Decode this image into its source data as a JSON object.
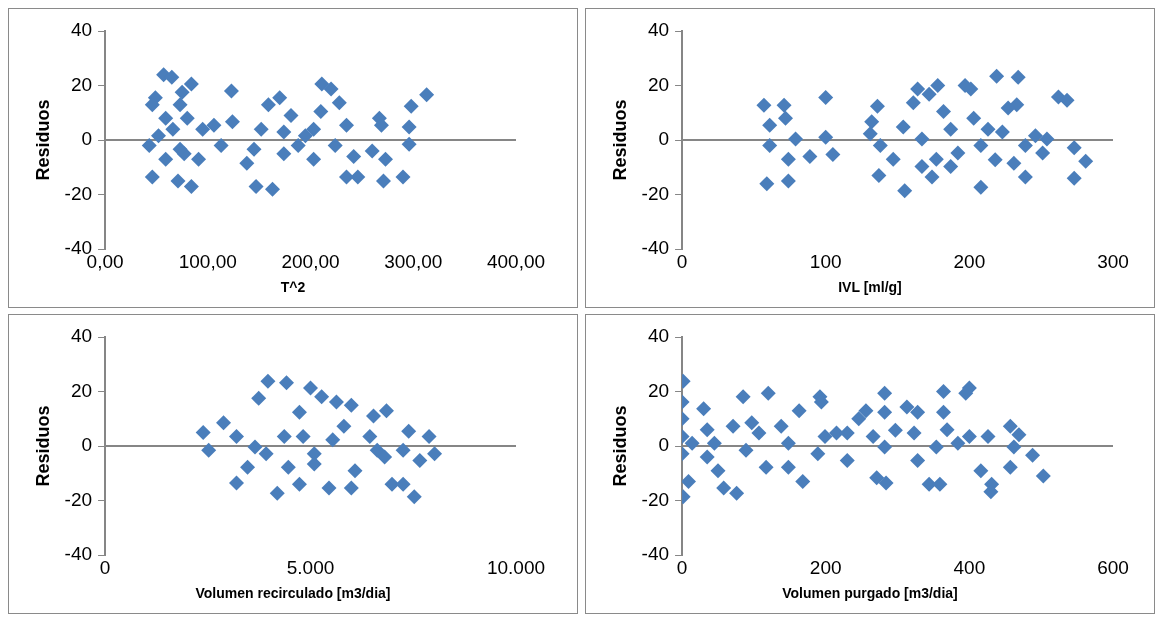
{
  "chart_data": [
    {
      "type": "scatter",
      "xlabel": "T^2",
      "ref_lines": [
        {
          "axis": "y",
          "value": 0
        }
      ],
      "ylabel": "Residuos",
      "color": "#4a7ebb",
      "marker": "diamond",
      "grid": false,
      "legend": false,
      "xlim": [
        0,
        400
      ],
      "xticks": [
        {
          "value": 0,
          "label": "0,00"
        },
        {
          "value": 100,
          "label": "100,00"
        },
        {
          "value": 200,
          "label": "200,00"
        },
        {
          "value": 300,
          "label": "300,00"
        },
        {
          "value": 400,
          "label": "400,00"
        }
      ],
      "ylim": [
        -40,
        40
      ],
      "yticks": [
        -40,
        -20,
        0,
        20,
        40
      ],
      "x": [
        57,
        65,
        49,
        46,
        84,
        75,
        123,
        124,
        43,
        46,
        84,
        71,
        59,
        77,
        95,
        113,
        106,
        66,
        52,
        80,
        73,
        138,
        147,
        163,
        145,
        152,
        159,
        170,
        181,
        174,
        188,
        174,
        203,
        211,
        220,
        228,
        210,
        235,
        224,
        235,
        246,
        242,
        260,
        273,
        271,
        267,
        269,
        290,
        296,
        296,
        298,
        313,
        203,
        195,
        73,
        59,
        91
      ],
      "values": [
        24,
        23,
        15.5,
        13,
        20.6,
        17.5,
        18,
        6.7,
        -2,
        -13.5,
        -17,
        -15,
        -7,
        -5,
        4,
        -2,
        5.4,
        4,
        1.6,
        8,
        13,
        -8.5,
        -17,
        -18,
        -3.4,
        4,
        13,
        15.5,
        9,
        3,
        -2,
        -5,
        4,
        20.6,
        18.7,
        13.7,
        10.5,
        5.4,
        -2,
        -13.5,
        -13.5,
        -6,
        -4,
        -7,
        -15,
        8,
        5.4,
        -13.5,
        -1.5,
        4.8,
        12.4,
        16.6,
        -7,
        1.6,
        -3.4,
        8,
        -7
      ]
    },
    {
      "type": "scatter",
      "xlabel": "IVL [ml/g]",
      "ylabel": "Residuos",
      "color": "#4a7ebb",
      "marker": "diamond",
      "grid": false,
      "legend": false,
      "xlim": [
        0,
        300
      ],
      "xticks": [
        0,
        100,
        200,
        300
      ],
      "ylim": [
        -40,
        40
      ],
      "yticks": [
        -40,
        -20,
        0,
        20,
        40
      ],
      "ref_lines": [
        {
          "axis": "y",
          "value": 0
        }
      ],
      "x": [
        57,
        71,
        100,
        61,
        72,
        61,
        79,
        100,
        89,
        105,
        74,
        74,
        59,
        136,
        132,
        131,
        138,
        137,
        147,
        155,
        154,
        164,
        161,
        178,
        172,
        182,
        167,
        177,
        174,
        187,
        192,
        197,
        201,
        203,
        208,
        208,
        213,
        219,
        234,
        233,
        227,
        223,
        231,
        239,
        246,
        251,
        254,
        262,
        268,
        273,
        281,
        273,
        187,
        167,
        218,
        239
      ],
      "values": [
        12.8,
        12.8,
        15.6,
        5.4,
        8,
        -2,
        0.4,
        1,
        -6,
        -5.3,
        -7,
        -15,
        -16,
        12.4,
        6.7,
        2.3,
        -2,
        -13,
        -7,
        -18.6,
        4.8,
        18.7,
        13.7,
        20,
        16.8,
        10.5,
        0.4,
        -7,
        -13.5,
        4,
        -4.7,
        20,
        18.7,
        8,
        -2,
        -17.3,
        4,
        23.4,
        23,
        13,
        11.8,
        3,
        -8.5,
        -13.5,
        1.6,
        -4.7,
        0.4,
        15.8,
        14.6,
        -2.8,
        -7.8,
        -14,
        -9.7,
        -9.7,
        -7.2,
        -2
      ]
    },
    {
      "type": "scatter",
      "xlabel": "Volumen recirculado [m3/dia]",
      "ref_lines": [
        {
          "axis": "y",
          "value": 0
        }
      ],
      "ylabel": "Residuos",
      "color": "#4a7ebb",
      "marker": "diamond",
      "grid": false,
      "legend": false,
      "xlim": [
        0,
        10000
      ],
      "xticks": [
        {
          "value": 0,
          "label": "0"
        },
        {
          "value": 5000,
          "label": "5.000"
        },
        {
          "value": 10000,
          "label": "10.000"
        }
      ],
      "ylim": [
        -40,
        40
      ],
      "yticks": [
        -40,
        -20,
        0,
        20,
        40
      ],
      "x": [
        2388,
        2522,
        2883,
        3198,
        3198,
        3468,
        3739,
        3964,
        4415,
        4190,
        3919,
        4360,
        4730,
        5000,
        5090,
        4730,
        5450,
        5270,
        5631,
        5992,
        5811,
        6082,
        5992,
        6532,
        6848,
        6442,
        6622,
        6803,
        6983,
        7254,
        7524,
        7389,
        7254,
        7884,
        8019,
        7659,
        4820,
        5540,
        3649,
        5090,
        4460
      ],
      "values": [
        5,
        -1.5,
        8.6,
        3.5,
        -13.5,
        -7.8,
        17.5,
        23.8,
        23.2,
        -17.3,
        -2.8,
        3.5,
        12.4,
        21.3,
        -2.8,
        -14,
        -15.4,
        18.1,
        16.2,
        15,
        7.3,
        -9,
        -15.4,
        11,
        13,
        3.5,
        -1.5,
        -4,
        -14,
        -14,
        -18.6,
        5.4,
        -1.5,
        3.5,
        -2.8,
        -5.3,
        3.5,
        2.3,
        -0.3,
        -6.6,
        -7.8
      ]
    },
    {
      "type": "scatter",
      "xlabel": "Volumen purgado [m3/dia]",
      "ref_lines": [
        {
          "axis": "y",
          "value": 0
        }
      ],
      "ylabel": "Residuos",
      "color": "#4a7ebb",
      "marker": "diamond",
      "grid": false,
      "legend": false,
      "xlim": [
        0,
        600
      ],
      "xticks": [
        0,
        200,
        400,
        600
      ],
      "ylim": [
        -40,
        40
      ],
      "yticks": [
        -40,
        -20,
        0,
        20,
        40
      ],
      "x": [
        1.5,
        0,
        0,
        0,
        0,
        1.5,
        9,
        30,
        35,
        45,
        50,
        58,
        76,
        71,
        85,
        97,
        89,
        107,
        120,
        117,
        138,
        148,
        148,
        163,
        168,
        192,
        194,
        215,
        189,
        230,
        246,
        256,
        266,
        271,
        284,
        282,
        282,
        282,
        297,
        313,
        328,
        323,
        328,
        344,
        359,
        354,
        364,
        364,
        369,
        384,
        400,
        395,
        400,
        416,
        426,
        431,
        430,
        457,
        469,
        457,
        462,
        488,
        503,
        230,
        199,
        35,
        14
      ],
      "values": [
        23.8,
        16.2,
        10,
        3.5,
        -2.8,
        -18.6,
        -13,
        13.7,
        6,
        1,
        -9,
        -15.4,
        -17.3,
        7.3,
        18.1,
        8.6,
        -1.5,
        4.8,
        19.4,
        -7.8,
        7.3,
        1,
        -7.8,
        13,
        -13,
        18.1,
        16.2,
        4.8,
        -2.8,
        -5.3,
        10,
        13,
        3.5,
        -11.6,
        -13.5,
        19.4,
        12.4,
        -0.3,
        5.8,
        14.3,
        12.4,
        4.8,
        -5.3,
        -14,
        -14,
        -0.3,
        20,
        12.4,
        6,
        1,
        21.3,
        19.4,
        3.5,
        -9,
        3.5,
        -14,
        -16.7,
        7.3,
        4.2,
        -7.8,
        -0.3,
        -3.4,
        -11,
        4.8,
        3.5,
        -4,
        1
      ]
    }
  ]
}
